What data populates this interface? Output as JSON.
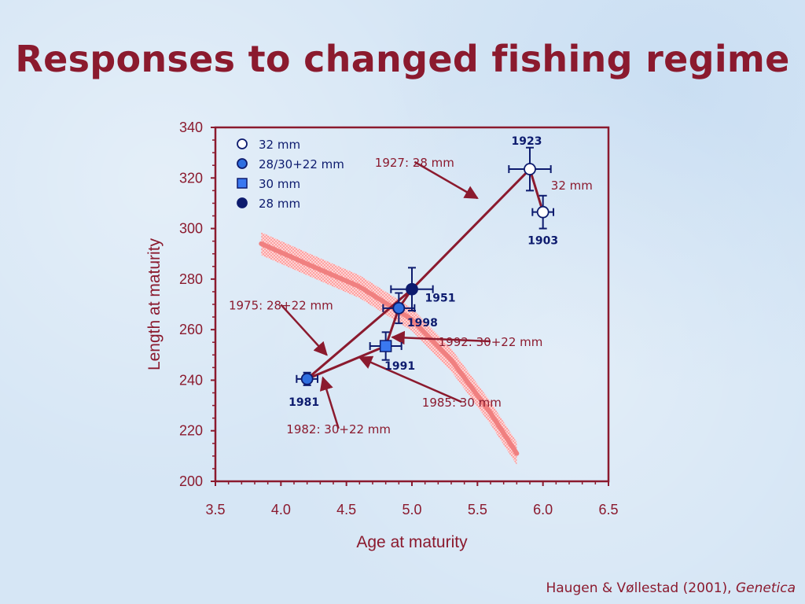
{
  "slide": {
    "title": "Responses to changed fishing regime",
    "citation": "Haugen & Vøllestad (2001),",
    "citation_journal": "Genetica"
  },
  "colors": {
    "title": "#8b1a2e",
    "line": "#8b1a2e",
    "marker_dark": "#0d1b6e",
    "marker_mid": "#2f6fe0",
    "marker_square": "#3a78f0",
    "band": "#f08080"
  },
  "chart_data": {
    "type": "scatter",
    "xlabel": "Age at maturity",
    "ylabel": "Length at maturity",
    "xlim": [
      3.5,
      6.5
    ],
    "ylim": [
      200,
      340
    ],
    "xticks": [
      "3.5",
      "4.0",
      "4.5",
      "5.0",
      "5.5",
      "6.0",
      "6.5"
    ],
    "yticks": [
      "200",
      "220",
      "240",
      "260",
      "280",
      "300",
      "320",
      "340"
    ],
    "grid": false,
    "legend_position": "top-left",
    "legend": [
      {
        "label": "32 mm",
        "marker": "circle-open"
      },
      {
        "label": "28/30+22 mm",
        "marker": "circle-mid"
      },
      {
        "label": "30 mm",
        "marker": "square"
      },
      {
        "label": "28 mm",
        "marker": "circle-dark"
      }
    ],
    "points": [
      {
        "year": "1903",
        "x": 6.0,
        "y": 306.5,
        "xerr": 0.08,
        "yerr": 6.5,
        "marker": "circle-open"
      },
      {
        "year": "1923",
        "x": 5.9,
        "y": 323.5,
        "xerr": 0.16,
        "yerr": 8.5,
        "marker": "circle-open"
      },
      {
        "year": "1951",
        "x": 5.0,
        "y": 276.0,
        "xerr": 0.16,
        "yerr": 8.5,
        "marker": "circle-dark"
      },
      {
        "year": "1998",
        "x": 4.9,
        "y": 268.5,
        "xerr": 0.12,
        "yerr": 6.0,
        "marker": "circle-mid"
      },
      {
        "year": "1991",
        "x": 4.8,
        "y": 253.5,
        "xerr": 0.12,
        "yerr": 5.5,
        "marker": "square"
      },
      {
        "year": "1981",
        "x": 4.2,
        "y": 240.5,
        "xerr": 0.08,
        "yerr": 2.5,
        "marker": "circle-mid"
      }
    ],
    "trajectory": [
      "1903",
      "1923",
      "1951",
      "1998",
      "1991",
      "1981",
      "1951"
    ],
    "band": {
      "x": [
        3.85,
        4.2,
        4.6,
        5.0,
        5.3,
        5.6,
        5.8
      ],
      "y": [
        294.0,
        286.0,
        277.0,
        264.0,
        248.0,
        227.0,
        211.0
      ],
      "half_width": 4.5
    },
    "annotations": [
      {
        "text": "1927: 28 mm",
        "tx": 5.02,
        "ty": 324.5,
        "ax": 5.5,
        "ay": 312.0,
        "arrow": true
      },
      {
        "text": "32 mm",
        "tx": 6.22,
        "ty": 315.5,
        "arrow": false
      },
      {
        "text": "1975: 28+22 mm",
        "tx": 4.0,
        "ty": 268.0,
        "ax": 4.35,
        "ay": 250.0,
        "arrow": true
      },
      {
        "text": "1992: 30+22 mm",
        "tx": 5.6,
        "ty": 253.5,
        "ax": 4.85,
        "ay": 257.0,
        "arrow": true
      },
      {
        "text": "1985: 30 mm",
        "tx": 5.38,
        "ty": 229.5,
        "ax": 4.6,
        "ay": 249.0,
        "arrow": true
      },
      {
        "text": "1982: 30+22 mm",
        "tx": 4.44,
        "ty": 219.0,
        "ax": 4.32,
        "ay": 241.0,
        "arrow": true
      }
    ]
  }
}
